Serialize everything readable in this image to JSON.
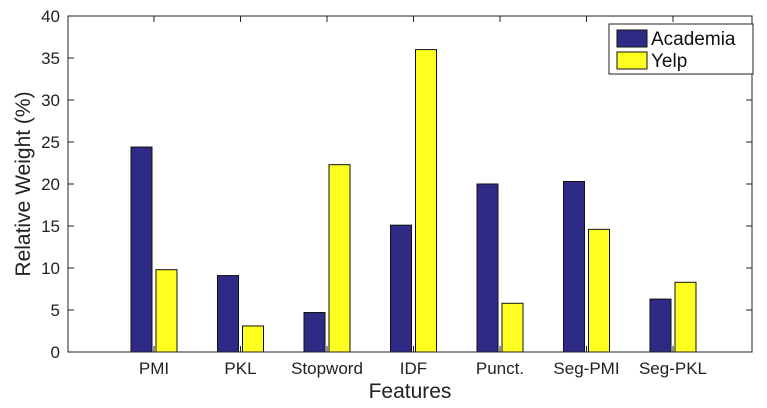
{
  "chart_data": {
    "type": "bar",
    "title": "",
    "xlabel": "Features",
    "ylabel": "Relative Weight (%)",
    "ylim": [
      0,
      40
    ],
    "yticks": [
      0,
      5,
      10,
      15,
      20,
      25,
      30,
      35,
      40
    ],
    "categories": [
      "PMI",
      "PKL",
      "Stopword",
      "IDF",
      "Punct.",
      "Seg-PMI",
      "Seg-PKL"
    ],
    "series": [
      {
        "name": "Academia",
        "color": "#2e2a86",
        "values": [
          24.4,
          9.1,
          4.7,
          15.1,
          20.0,
          20.3,
          6.3
        ]
      },
      {
        "name": "Yelp",
        "color": "#ffff1f",
        "values": [
          9.8,
          3.1,
          22.3,
          36.0,
          5.8,
          14.6,
          8.3
        ]
      }
    ],
    "legend_position": "top-right",
    "grid": false
  }
}
